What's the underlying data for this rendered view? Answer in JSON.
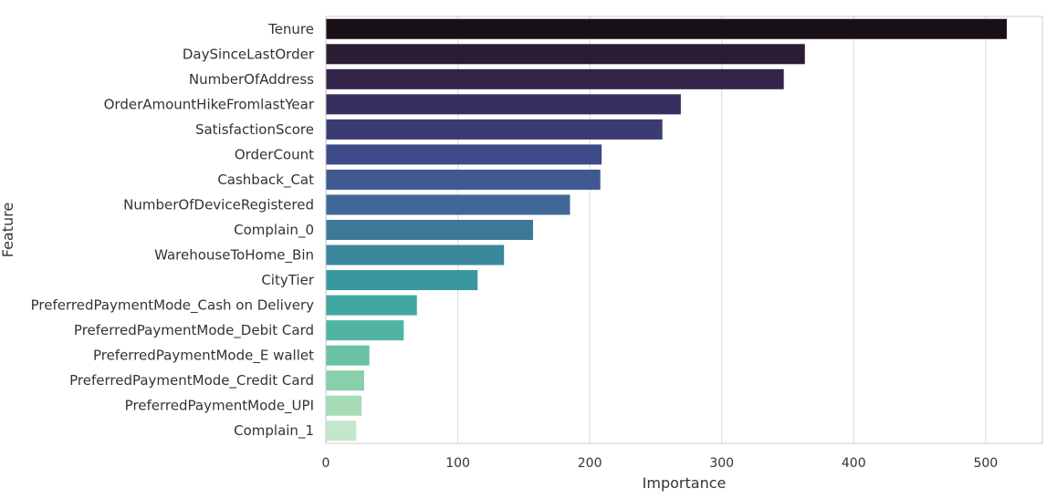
{
  "chart_data": {
    "type": "bar",
    "orientation": "horizontal",
    "xlabel": "Importance",
    "ylabel": "Feature",
    "xlim": [
      0,
      543
    ],
    "xticks": [
      0,
      100,
      200,
      300,
      400,
      500
    ],
    "grid": true,
    "categories": [
      "Tenure",
      "DaySinceLastOrder",
      "NumberOfAddress",
      "OrderAmountHikeFromlastYear",
      "SatisfactionScore",
      "OrderCount",
      "Cashback_Cat",
      "NumberOfDeviceRegistered",
      "Complain_0",
      "WarehouseToHome_Bin",
      "CityTier",
      "PreferredPaymentMode_Cash on Delivery",
      "PreferredPaymentMode_Debit Card",
      "PreferredPaymentMode_E wallet",
      "PreferredPaymentMode_Credit Card",
      "PreferredPaymentMode_UPI",
      "Complain_1"
    ],
    "values": [
      516,
      363,
      347,
      269,
      255,
      209,
      208,
      185,
      157,
      135,
      115,
      69,
      59,
      33,
      29,
      27,
      23
    ],
    "colors": [
      "#1a1118",
      "#2b1c33",
      "#33244a",
      "#382f5e",
      "#3b3b74",
      "#3e4a89",
      "#405991",
      "#3f6896",
      "#3d7899",
      "#3a879c",
      "#39979e",
      "#3fa6a0",
      "#4fb4a2",
      "#69c2a5",
      "#88cfab",
      "#a6dbb6",
      "#c4e6cb"
    ]
  }
}
